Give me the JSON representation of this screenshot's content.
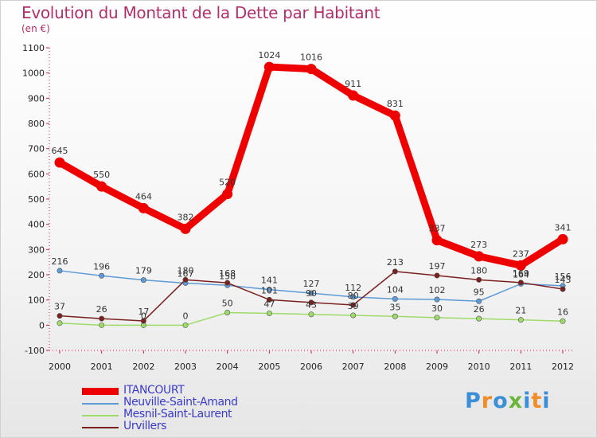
{
  "header": {
    "title": "Evolution du Montant de la Dette par Habitant",
    "subtitle": "(en €)"
  },
  "logo": {
    "text": "Proxiti",
    "colors": [
      "#3a8fd6",
      "#f28c28",
      "#3a8fd6",
      "#6ab63c",
      "#3a8fd6",
      "#f28c28",
      "#3a8fd6"
    ]
  },
  "chart_data": {
    "type": "line",
    "x": [
      "2000",
      "2001",
      "2002",
      "2003",
      "2004",
      "2005",
      "2006",
      "2007",
      "2008",
      "2009",
      "2010",
      "2011",
      "2012"
    ],
    "ylim": [
      -100,
      1100
    ],
    "yticks": [
      -100,
      0,
      100,
      200,
      300,
      400,
      500,
      600,
      700,
      800,
      900,
      1000,
      1100
    ],
    "grid": false,
    "legend": "bottom-left",
    "series": [
      {
        "name": "ITANCOURT",
        "color": "#ee0000",
        "width": 9,
        "values": [
          645,
          550,
          464,
          382,
          520,
          1024,
          1016,
          911,
          831,
          337,
          273,
          237,
          341
        ]
      },
      {
        "name": "Neuville-Saint-Amand",
        "color": "#5d9bd6",
        "width": 1.5,
        "values": [
          216,
          196,
          179,
          167,
          158,
          141,
          127,
          112,
          104,
          102,
          95,
          164,
          156
        ]
      },
      {
        "name": "Mesnil-Saint-Laurent",
        "color": "#9edb6a",
        "width": 1.5,
        "values": [
          8,
          0,
          0,
          0,
          50,
          47,
          43,
          39,
          35,
          30,
          26,
          21,
          16
        ]
      },
      {
        "name": "Urvillers",
        "color": "#7a2020",
        "width": 1.5,
        "values": [
          37,
          26,
          17,
          180,
          168,
          101,
          90,
          80,
          213,
          197,
          180,
          169,
          143
        ]
      }
    ],
    "value_labels": [
      [
        "645",
        "550",
        "464",
        "382",
        "520",
        "1024",
        "1016",
        "911",
        "831",
        "337",
        "273",
        "237",
        "341"
      ],
      [
        "216",
        "196",
        "179",
        "167",
        "158",
        "141",
        "127",
        "112",
        "104",
        "102",
        "95",
        "164",
        "156"
      ],
      [
        "",
        "",
        "0",
        "0",
        "50",
        "47",
        "43",
        "39",
        "35",
        "30",
        "26",
        "21",
        "16"
      ],
      [
        "37",
        "26",
        "17",
        "180",
        "168",
        "101",
        "90",
        "80",
        "213",
        "197",
        "180",
        "169",
        "143"
      ]
    ]
  }
}
